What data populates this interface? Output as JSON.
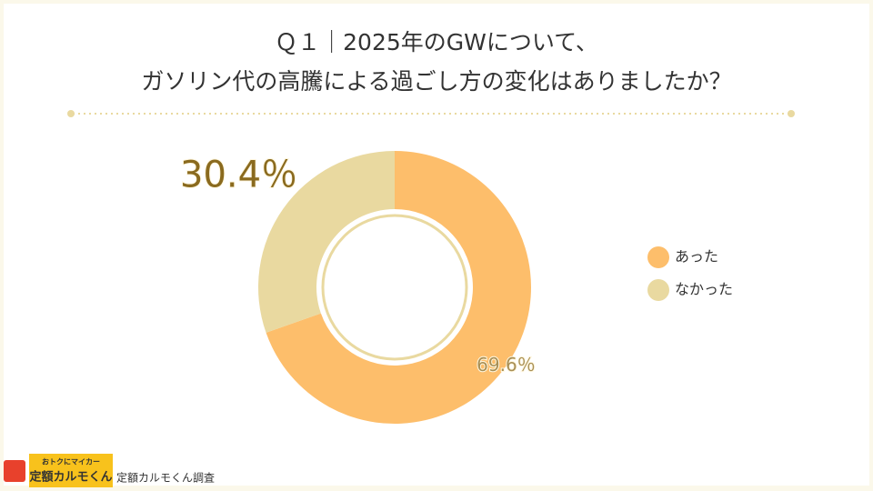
{
  "chart_data": {
    "type": "donut",
    "title": [
      "Ｑ１｜2025年のGWについて、",
      "ガソリン代の高騰による過ごし方の変化はありましたか？"
    ],
    "categories": [
      "あった",
      "なかった"
    ],
    "values": [
      69.6,
      30.4
    ],
    "value_labels": [
      "69.6％",
      "30.4％"
    ],
    "colors": [
      "#fdbe6b",
      "#e9d9a0"
    ],
    "legend": "right"
  },
  "footer": {
    "logo_top": "おトクにマイカー",
    "logo_main": "定額カルモくん",
    "source": "定額カルモくん調査"
  }
}
